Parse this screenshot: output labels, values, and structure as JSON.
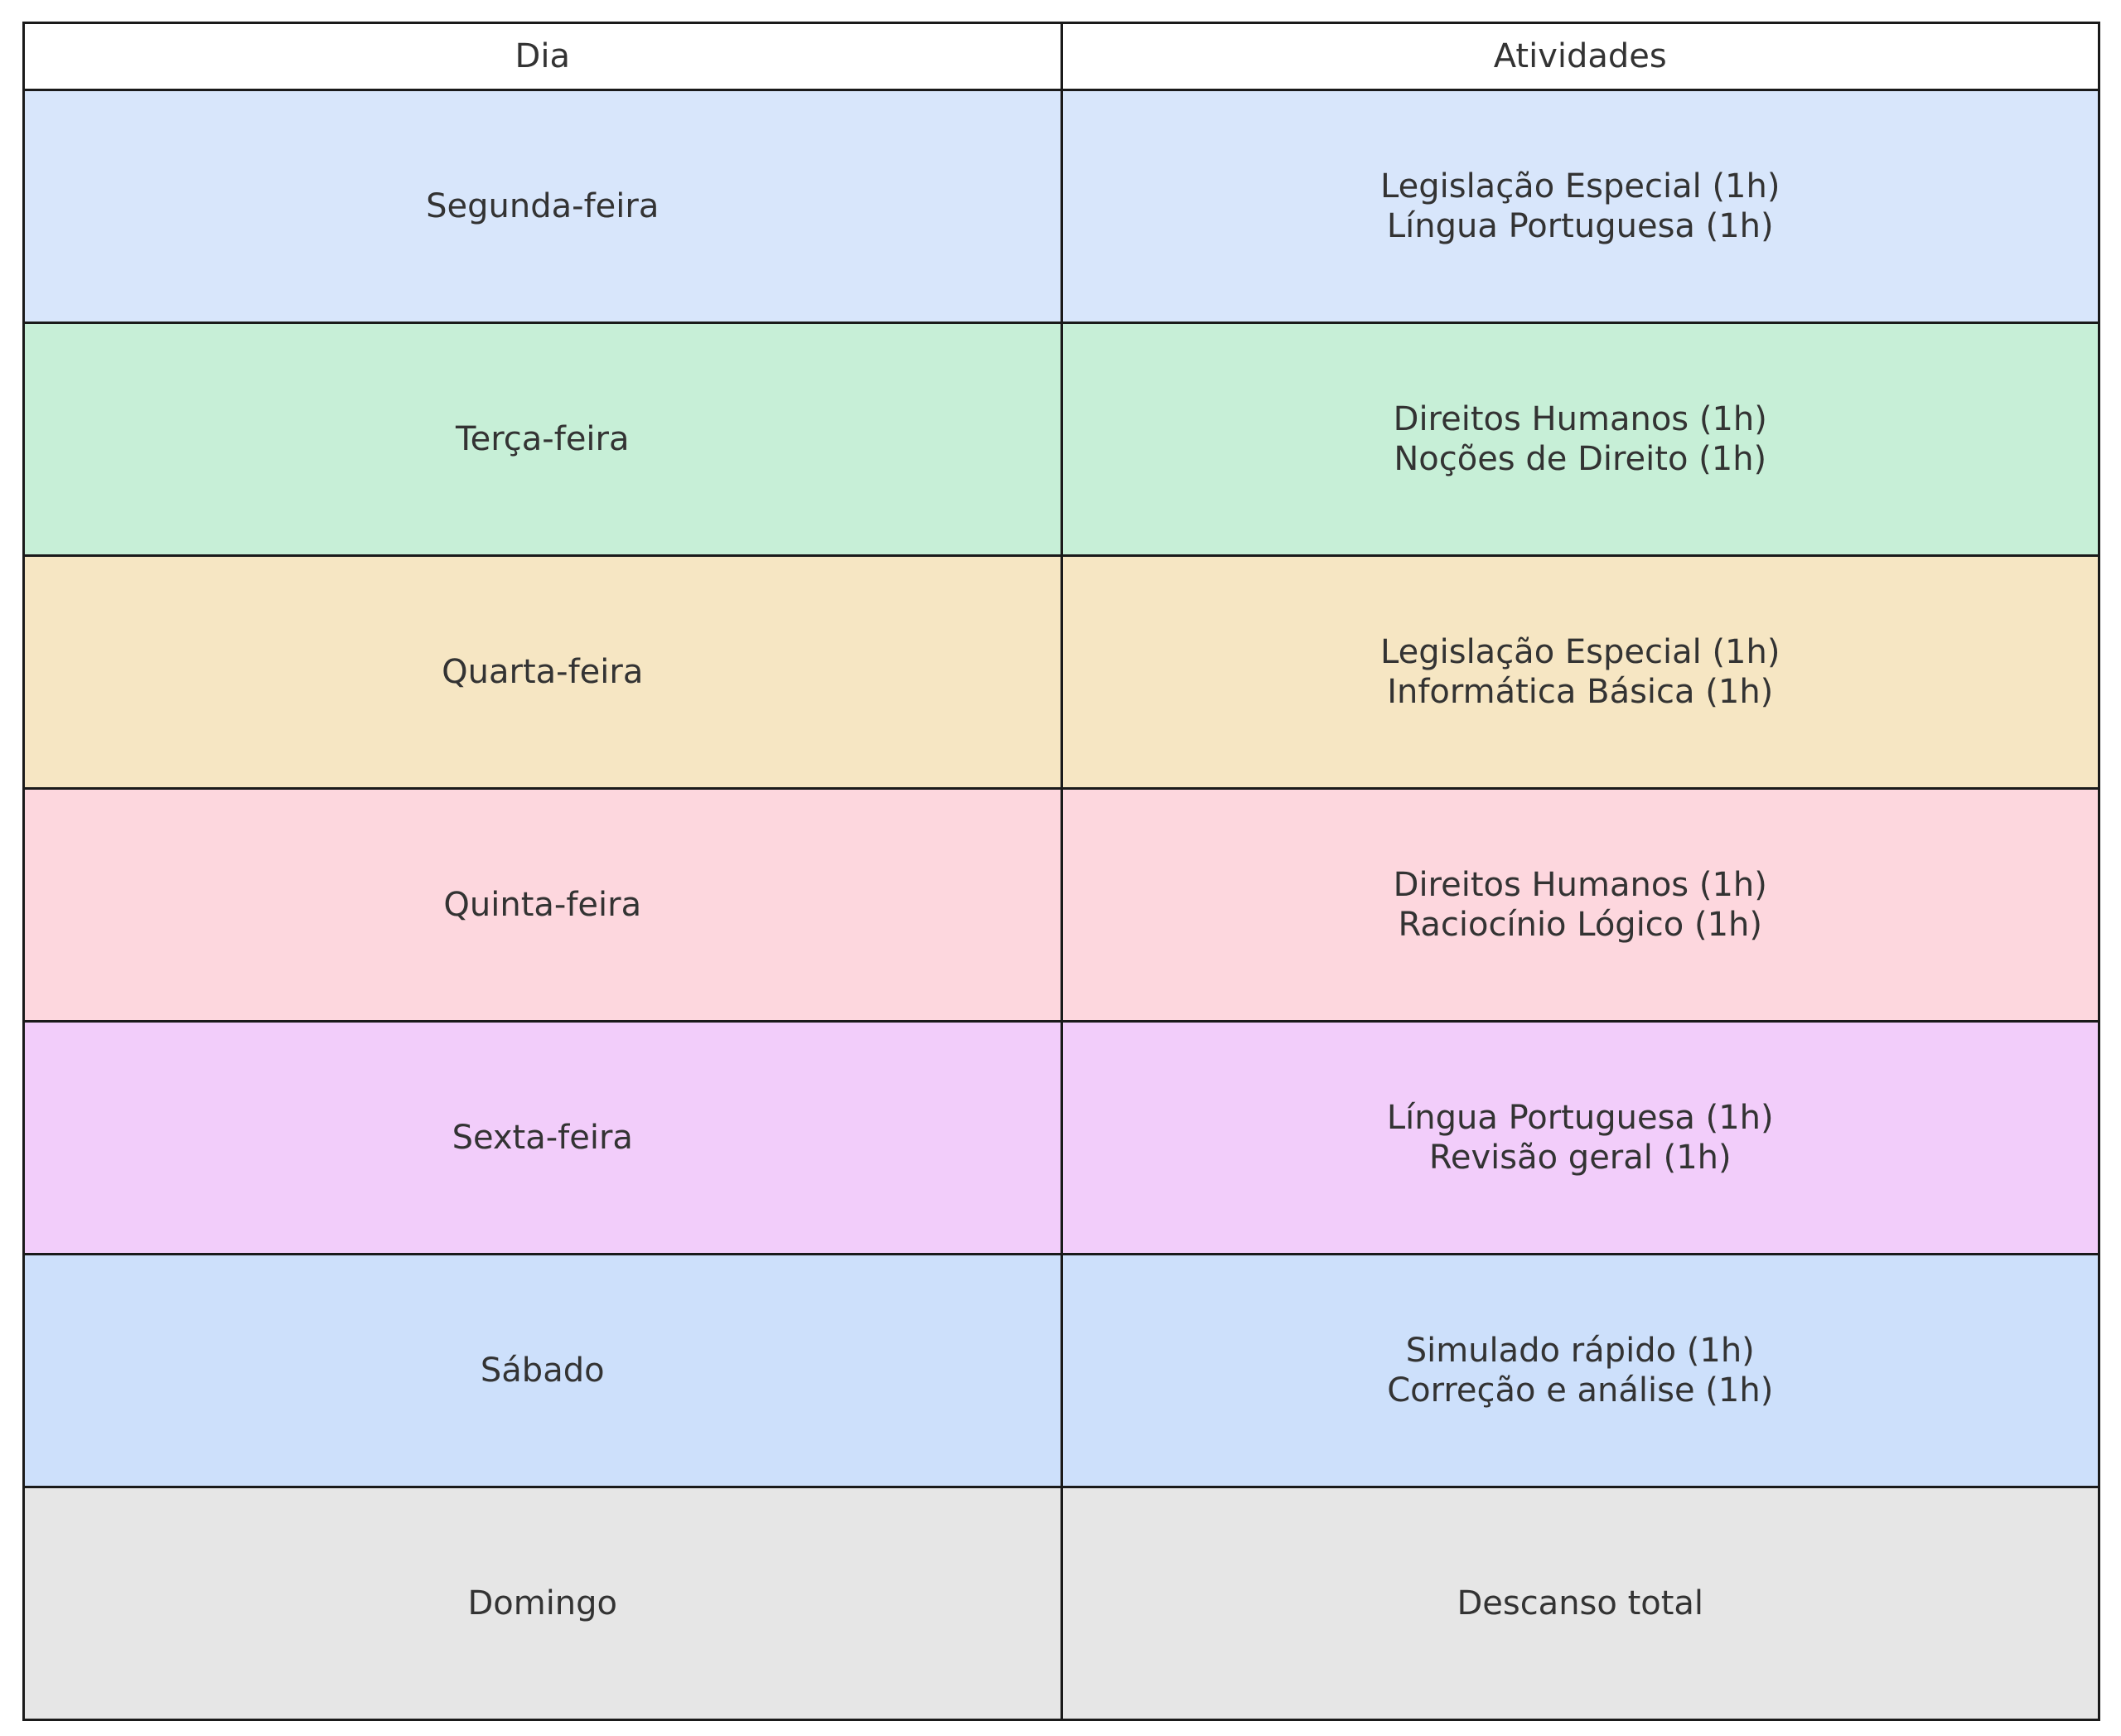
{
  "chart_data": {
    "type": "table",
    "columns": [
      "Dia",
      "Atividades"
    ],
    "rows": [
      {
        "day": "Segunda-feira",
        "activities": [
          "Legislação Especial (1h)",
          "Língua Portuguesa (1h)"
        ],
        "color": "#d8e6fb"
      },
      {
        "day": "Terça-feira",
        "activities": [
          "Direitos Humanos (1h)",
          "Noções de Direito (1h)"
        ],
        "color": "#c7efd7"
      },
      {
        "day": "Quarta-feira",
        "activities": [
          "Legislação Especial (1h)",
          "Informática Básica (1h)"
        ],
        "color": "#f6e6c3"
      },
      {
        "day": "Quinta-feira",
        "activities": [
          "Direitos Humanos (1h)",
          "Raciocínio Lógico (1h)"
        ],
        "color": "#fdd7de"
      },
      {
        "day": "Sexta-feira",
        "activities": [
          "Língua Portuguesa (1h)",
          "Revisão geral (1h)"
        ],
        "color": "#f2cdfa"
      },
      {
        "day": "Sábado",
        "activities": [
          "Simulado rápido (1h)",
          "Correção e análise (1h)"
        ],
        "color": "#cde0fb"
      },
      {
        "day": "Domingo",
        "activities": [
          "Descanso total"
        ],
        "color": "#e6e6e6"
      }
    ]
  }
}
